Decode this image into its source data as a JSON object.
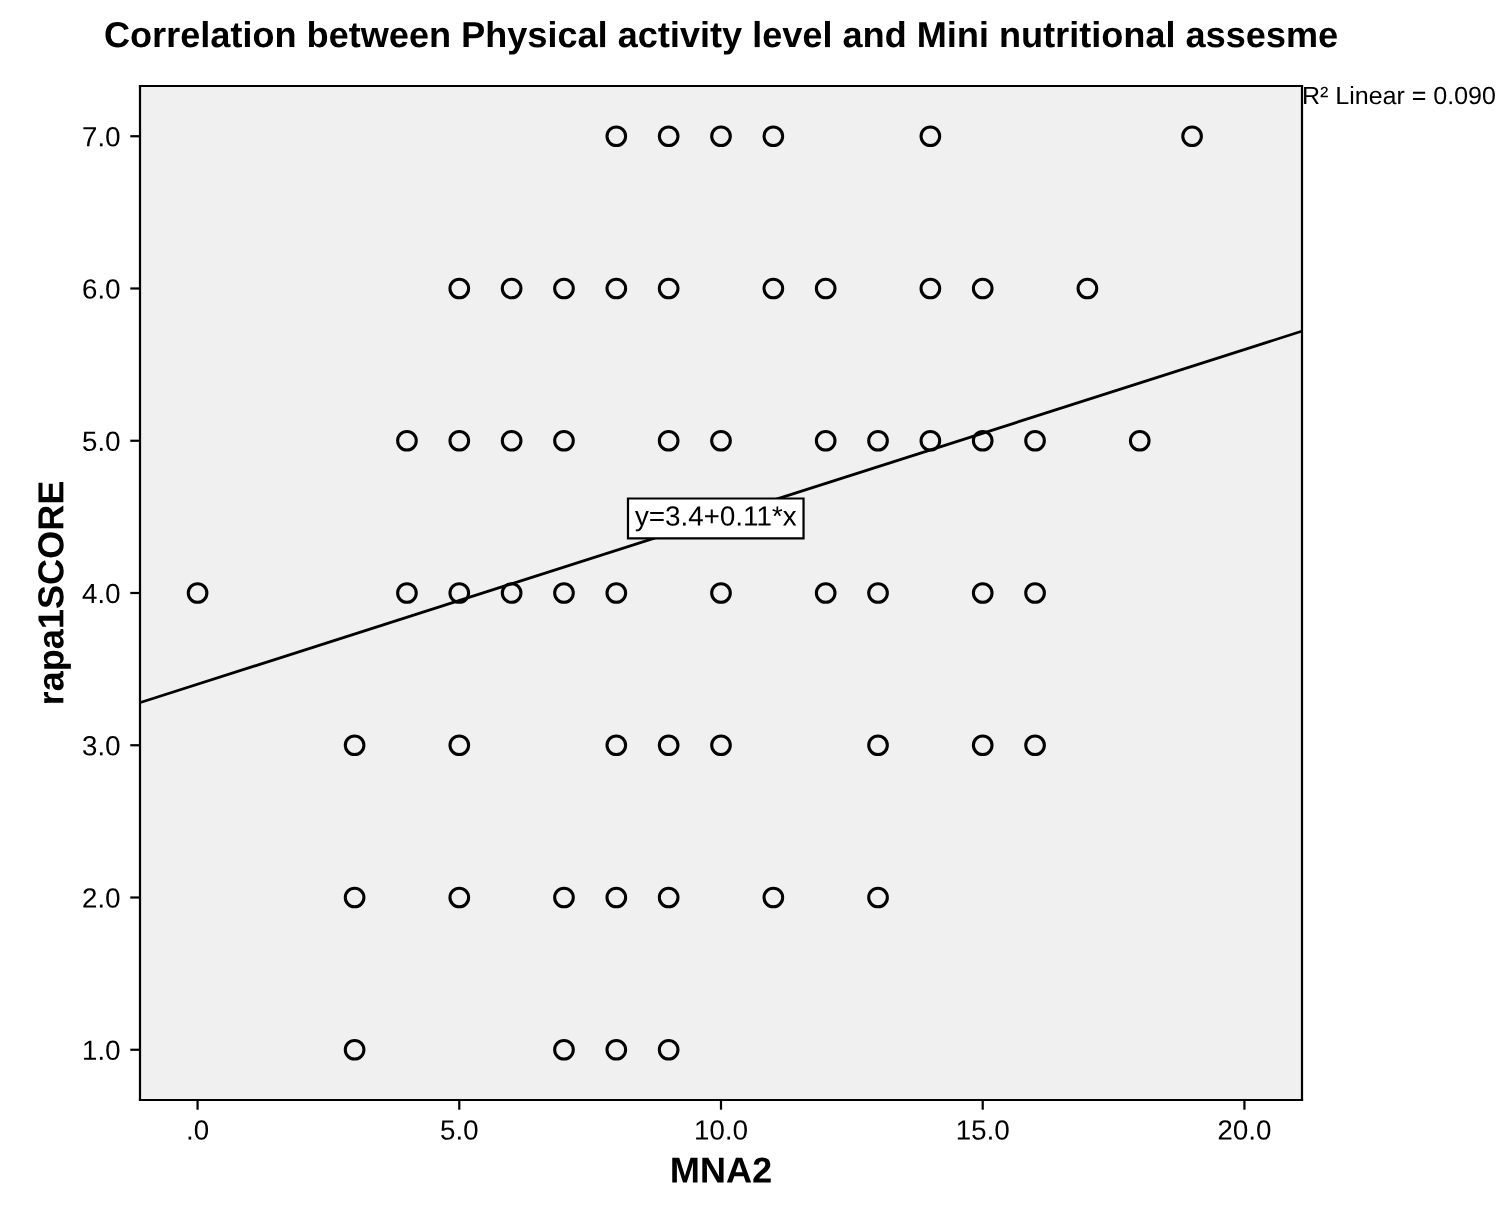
{
  "chart_data": {
    "type": "scatter",
    "title": "Correlation between Physical activity level and Mini nutritional assesme",
    "xlabel": "MNA2",
    "ylabel": "rapa1SCORE",
    "xlim": [
      -1.1,
      21.1
    ],
    "ylim": [
      0.67,
      7.33
    ],
    "xticks": [
      {
        "value": 0,
        "label": ".0"
      },
      {
        "value": 5,
        "label": "5.0"
      },
      {
        "value": 10,
        "label": "10.0"
      },
      {
        "value": 15,
        "label": "15.0"
      },
      {
        "value": 20,
        "label": "20.0"
      }
    ],
    "yticks": [
      {
        "value": 1,
        "label": "1.0"
      },
      {
        "value": 2,
        "label": "2.0"
      },
      {
        "value": 3,
        "label": "3.0"
      },
      {
        "value": 4,
        "label": "4.0"
      },
      {
        "value": 5,
        "label": "5.0"
      },
      {
        "value": 6,
        "label": "6.0"
      },
      {
        "value": 7,
        "label": "7.0"
      }
    ],
    "grid": false,
    "series": [
      {
        "marker": "circle",
        "color": "#000000",
        "x": [
          8,
          9,
          10,
          11,
          14,
          19,
          5,
          6,
          7,
          8,
          9,
          11,
          12,
          14,
          15,
          17,
          4,
          5,
          6,
          7,
          9,
          10,
          12,
          13,
          14,
          15,
          16,
          18,
          0,
          4,
          5,
          6,
          7,
          8,
          10,
          12,
          13,
          15,
          16,
          3,
          5,
          8,
          9,
          10,
          13,
          15,
          16,
          3,
          5,
          7,
          8,
          9,
          11,
          13,
          3,
          7,
          8,
          9
        ],
        "values": [
          7,
          7,
          7,
          7,
          7,
          7,
          6,
          6,
          6,
          6,
          6,
          6,
          6,
          6,
          6,
          6,
          5,
          5,
          5,
          5,
          5,
          5,
          5,
          5,
          5,
          5,
          5,
          5,
          4,
          4,
          4,
          4,
          4,
          4,
          4,
          4,
          4,
          4,
          4,
          3,
          3,
          3,
          3,
          3,
          3,
          3,
          3,
          2,
          2,
          2,
          2,
          2,
          2,
          2,
          1,
          1,
          1,
          1
        ]
      },
      {
        "type": "line",
        "marker": "none",
        "color": "#000000",
        "x": [
          -1.1,
          21.1
        ],
        "values": [
          3.28,
          5.72
        ]
      }
    ],
    "annotations": [
      {
        "text": "y=3.4+0.11*x",
        "x": 9.9,
        "y": 4.49
      },
      "R² Linear = 0.090"
    ]
  }
}
